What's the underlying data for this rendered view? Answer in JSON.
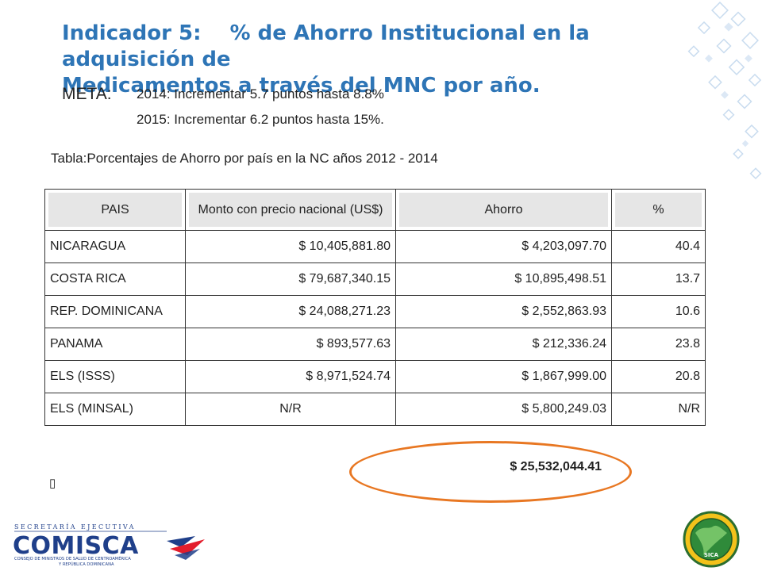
{
  "title": {
    "indicator": "Indicador 5:",
    "line1": "% de Ahorro Institucional en la adquisición de",
    "line2": "Medicamentos a través del MNC por año."
  },
  "meta": {
    "label": "META:",
    "lines": [
      "2014: Incrementar 5.7 puntos hasta 8.8%",
      "2015: Incrementar 6.2 puntos hasta 15%."
    ]
  },
  "table": {
    "caption": "Tabla:Porcentajes de Ahorro por país en la NC años 2012 - 2014",
    "headers": [
      "PAIS",
      "Monto con precio nacional (US$)",
      "Ahorro",
      "%"
    ],
    "rows": [
      {
        "country": "NICARAGUA",
        "monto": "$ 10,405,881.80",
        "ahorro": "$ 4,203,097.70",
        "pct": "40.4"
      },
      {
        "country": "COSTA RICA",
        "monto": "$ 79,687,340.15",
        "ahorro": "$ 10,895,498.51",
        "pct": "13.7"
      },
      {
        "country": "REP. DOMINICANA",
        "monto": "$ 24,088,271.23",
        "ahorro": "$ 2,552,863.93",
        "pct": "10.6"
      },
      {
        "country": "PANAMA",
        "monto": "$ 893,577.63",
        "ahorro": "$ 212,336.24",
        "pct": "23.8"
      },
      {
        "country": "ELS (ISSS)",
        "monto": "$ 8,971,524.74",
        "ahorro": "$ 1,867,999.00",
        "pct": "20.8"
      },
      {
        "country": "ELS (MINSAL)",
        "monto": "N/R",
        "ahorro": "$ 5,800,249.03",
        "pct": "N/R"
      }
    ],
    "total": "$ 25,532,044.41"
  },
  "stray_mark": "▯",
  "colors": {
    "title": "#2e75b6",
    "highlight": "#e87722",
    "header_bg": "#e6e6e6"
  },
  "logos": {
    "left": {
      "top_text": "SECRETARÍA EJECUTIVA",
      "name": "COMISCA",
      "sub1": "CONSEJO DE MINISTROS DE SALUD DE CENTROAMÉRICA",
      "sub2": "Y REPÚBLICA DOMINICANA"
    },
    "right": {
      "name": "SICA"
    }
  }
}
